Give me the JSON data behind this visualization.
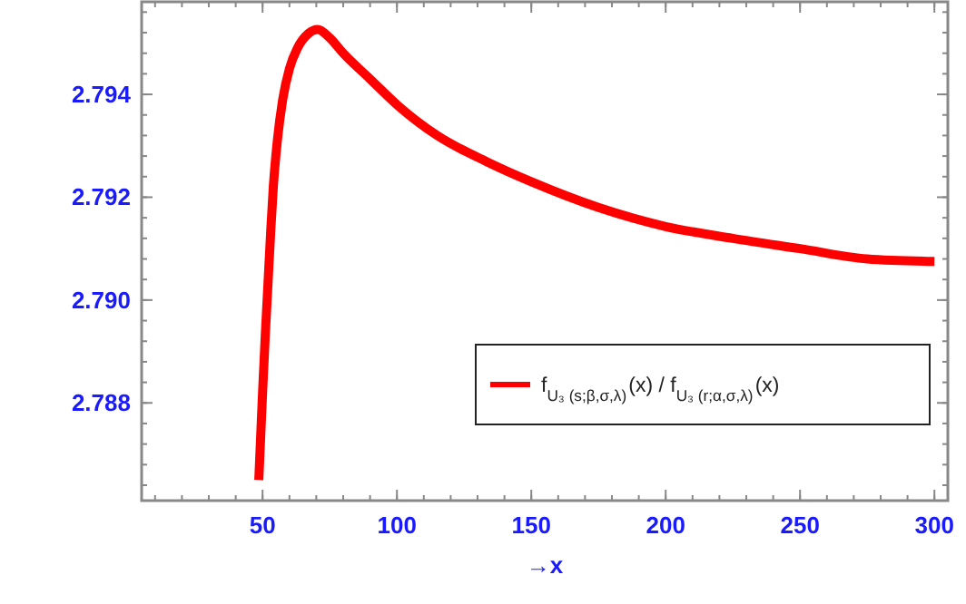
{
  "chart_data": {
    "type": "line",
    "xlabel": "→x",
    "xlim": [
      5,
      305
    ],
    "xticks": [
      50,
      100,
      150,
      200,
      250,
      300
    ],
    "ylim": [
      2.7861,
      2.7958
    ],
    "yticks": [
      2.788,
      {
        "value": 2.79,
        "label": "2.790"
      },
      2.792,
      2.794
    ],
    "grid": false,
    "legend": "bottom right",
    "marker": "none",
    "line_style": "solid",
    "series": [
      {
        "name": "f$_{U₃ (s;β,σ,λ)}$(x) / f$_{U₃ (r;α,σ,λ)}$(x)",
        "color": "#ff0000",
        "x": [
          48.6,
          50,
          51,
          52,
          53,
          54,
          55.5,
          57.5,
          60,
          63,
          67,
          70.5,
          75,
          80,
          90,
          100,
          115,
          133,
          150,
          175,
          200,
          225,
          250,
          275,
          300
        ],
        "values": [
          2.7865,
          2.7882,
          2.7893,
          2.7903,
          2.7913,
          2.7922,
          2.7931,
          2.7939,
          2.7945,
          2.7949,
          2.79518,
          2.79526,
          2.7951,
          2.7948,
          2.7943,
          2.7938,
          2.7932,
          2.7927,
          2.7923,
          2.7918,
          2.79143,
          2.7912,
          2.791,
          2.7908,
          2.79075
        ]
      }
    ]
  }
}
